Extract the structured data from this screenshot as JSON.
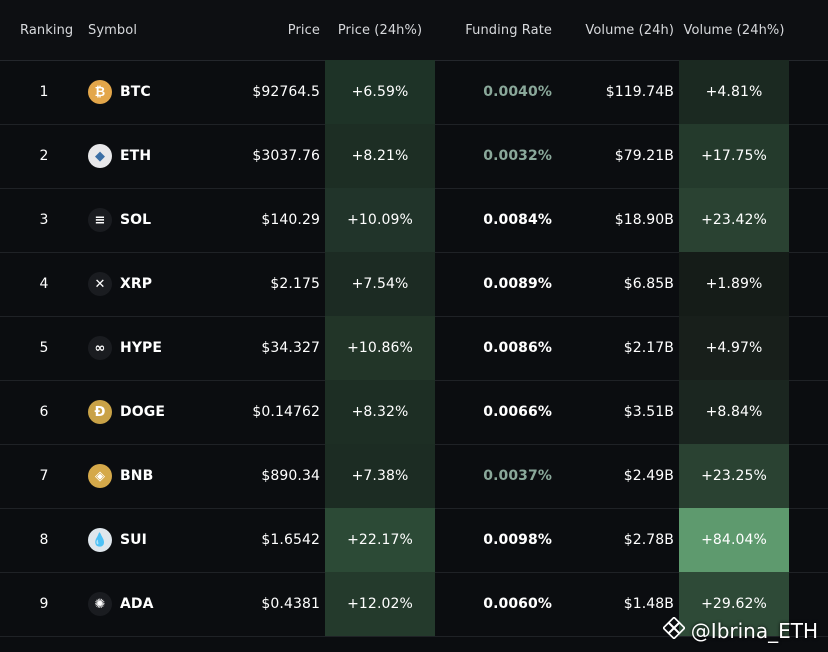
{
  "colors": {
    "background": "#0b0d10",
    "row_border": "#1f2226",
    "heat_low": "#1f2b24",
    "heat_mid": "#2f4a39",
    "heat_high": "#5e9a6e",
    "funding_muted": "#8aa89a"
  },
  "header": {
    "ranking": "Ranking",
    "symbol": "Symbol",
    "price": "Price",
    "price_change": "Price (24h%)",
    "funding_rate": "Funding Rate",
    "volume": "Volume (24h)",
    "volume_change": "Volume (24h%)"
  },
  "rows": [
    {
      "rank": "1",
      "symbol": "BTC",
      "icon": "bitcoin-icon",
      "icon_color": "#e3a64a",
      "icon_glyph": "₿",
      "price": "$92764.5",
      "price_change": "+6.59%",
      "price_heat": "#1e3327",
      "funding": "0.0040%",
      "funding_muted": true,
      "volume": "$119.74B",
      "volume_change": "+4.81%",
      "volume_heat": "#1b2921"
    },
    {
      "rank": "2",
      "symbol": "ETH",
      "icon": "ethereum-icon",
      "icon_color": "#e8e8ea",
      "icon_glyph": "◆",
      "price": "$3037.76",
      "price_change": "+8.21%",
      "price_heat": "#1d2e24",
      "funding": "0.0032%",
      "funding_muted": true,
      "volume": "$79.21B",
      "volume_change": "+17.75%",
      "volume_heat": "#243a2c"
    },
    {
      "rank": "3",
      "symbol": "SOL",
      "icon": "solana-icon",
      "icon_color": "#1a1c20",
      "icon_glyph": "≡",
      "price": "$140.29",
      "price_change": "+10.09%",
      "price_heat": "#21342a",
      "funding": "0.0084%",
      "funding_muted": false,
      "volume": "$18.90B",
      "volume_change": "+23.42%",
      "volume_heat": "#2a4232"
    },
    {
      "rank": "4",
      "symbol": "XRP",
      "icon": "xrp-icon",
      "icon_color": "#1a1c20",
      "icon_glyph": "✕",
      "price": "$2.175",
      "price_change": "+7.54%",
      "price_heat": "#1c2b23",
      "funding": "0.0089%",
      "funding_muted": false,
      "volume": "$6.85B",
      "volume_change": "+1.89%",
      "volume_heat": "#151c18"
    },
    {
      "rank": "5",
      "symbol": "HYPE",
      "icon": "hyperliquid-icon",
      "icon_color": "#1a1c20",
      "icon_glyph": "∞",
      "price": "$34.327",
      "price_change": "+10.86%",
      "price_heat": "#223528",
      "funding": "0.0086%",
      "funding_muted": false,
      "volume": "$2.17B",
      "volume_change": "+4.97%",
      "volume_heat": "#181f1b"
    },
    {
      "rank": "6",
      "symbol": "DOGE",
      "icon": "dogecoin-icon",
      "icon_color": "#c9a247",
      "icon_glyph": "Ð",
      "price": "$0.14762",
      "price_change": "+8.32%",
      "price_heat": "#1d2e24",
      "funding": "0.0066%",
      "funding_muted": false,
      "volume": "$3.51B",
      "volume_change": "+8.84%",
      "volume_heat": "#1b2620"
    },
    {
      "rank": "7",
      "symbol": "BNB",
      "icon": "bnb-icon",
      "icon_color": "#d5a94a",
      "icon_glyph": "◈",
      "price": "$890.34",
      "price_change": "+7.38%",
      "price_heat": "#1c2c23",
      "funding": "0.0037%",
      "funding_muted": true,
      "volume": "$2.49B",
      "volume_change": "+23.25%",
      "volume_heat": "#2a4232"
    },
    {
      "rank": "8",
      "symbol": "SUI",
      "icon": "sui-icon",
      "icon_color": "#dfe6ec",
      "icon_glyph": "💧",
      "price": "$1.6542",
      "price_change": "+22.17%",
      "price_heat": "#2c4a36",
      "funding": "0.0098%",
      "funding_muted": false,
      "volume": "$2.78B",
      "volume_change": "+84.04%",
      "volume_heat": "#5e9a6e"
    },
    {
      "rank": "9",
      "symbol": "ADA",
      "icon": "cardano-icon",
      "icon_color": "#1a1c20",
      "icon_glyph": "✺",
      "price": "$0.4381",
      "price_change": "+12.02%",
      "price_heat": "#243a2c",
      "funding": "0.0060%",
      "funding_muted": false,
      "volume": "$1.48B",
      "volume_change": "+29.62%",
      "volume_heat": "#2e4a37"
    }
  ],
  "watermark": {
    "handle": "@Ibrina_ETH",
    "logo": "binance-square-logo"
  }
}
